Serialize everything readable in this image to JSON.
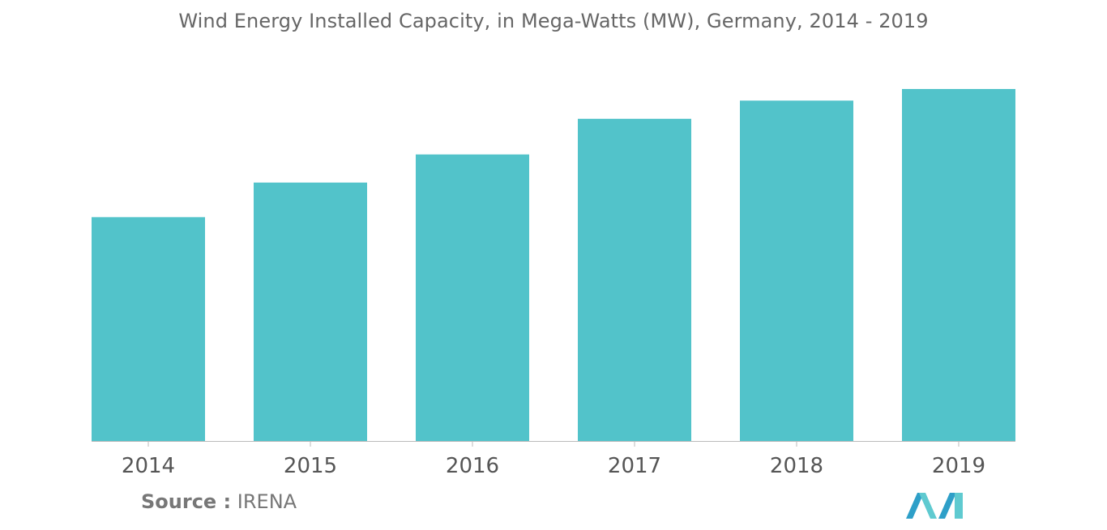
{
  "chart_data": {
    "type": "bar",
    "title": "Wind Energy Installed Capacity, in Mega-Watts (MW), Germany, 2014 - 2019",
    "categories": [
      "2014",
      "2015",
      "2016",
      "2017",
      "2018",
      "2019"
    ],
    "values": [
      38614,
      44580,
      49435,
      55580,
      58721,
      60721
    ],
    "xlabel": "",
    "ylabel": "",
    "ylim": [
      0,
      61000
    ],
    "grid": false,
    "legend": "none",
    "colors": {
      "bar": "#52c3ca",
      "axis": "#bbbbbb"
    }
  },
  "source": {
    "prefix": "Source :",
    "name": "IRENA"
  },
  "logo": {
    "name": "mordor-intelligence-logo",
    "colors": [
      "#2e9fc8",
      "#5fcad0",
      "#1d6fa3"
    ]
  }
}
